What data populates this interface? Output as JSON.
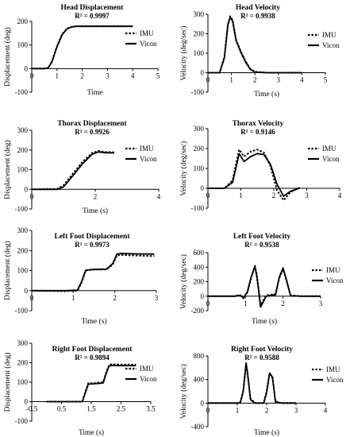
{
  "chart_data": [
    {
      "id": "head-disp",
      "type": "line",
      "title": "Head Displacement",
      "subtitle": "R² = 0.9997",
      "xlabel": "Time",
      "ylabel": "Displacement (deg)",
      "xlim": [
        0,
        5
      ],
      "ylim": [
        -100,
        200
      ],
      "xticks": [
        0,
        1,
        2,
        3,
        4,
        5
      ],
      "xtick_labels": [
        "0",
        "1",
        "2",
        "3",
        "4",
        "5"
      ],
      "yticks": [
        -100,
        0,
        100,
        200
      ],
      "ytick_labels": [
        "-100",
        "0",
        "100",
        "200"
      ],
      "legend": [
        "IMU",
        "Vicon"
      ],
      "legend_position": "right",
      "series": [
        {
          "name": "IMU",
          "style": "dotted",
          "x": [
            0,
            0.5,
            0.65,
            0.8,
            1.0,
            1.2,
            1.4,
            1.6,
            1.8,
            2.0,
            3.0,
            4.0
          ],
          "y": [
            0,
            0,
            3,
            30,
            95,
            145,
            170,
            178,
            180,
            180,
            180,
            180
          ]
        },
        {
          "name": "Vicon",
          "style": "solid",
          "x": [
            0,
            0.5,
            0.65,
            0.8,
            1.0,
            1.2,
            1.4,
            1.6,
            1.8,
            2.0,
            3.0,
            4.0
          ],
          "y": [
            0,
            0,
            2,
            28,
            92,
            143,
            169,
            177,
            179,
            179,
            179,
            179
          ]
        }
      ]
    },
    {
      "id": "head-vel",
      "type": "line",
      "title": "Head Velocity",
      "subtitle": "R² = 0.9938",
      "xlabel": "Time (s)",
      "ylabel": "Velocity (deg/sec)",
      "xlim": [
        0,
        5
      ],
      "ylim": [
        -100,
        300
      ],
      "xticks": [
        0,
        1,
        2,
        3,
        4,
        5
      ],
      "xtick_labels": [
        "0",
        "1",
        "2",
        "3",
        "4",
        "5"
      ],
      "yticks": [
        -100,
        0,
        100,
        200,
        300
      ],
      "ytick_labels": [
        "-100",
        "0",
        "100",
        "200",
        "300"
      ],
      "legend": [
        "IMU",
        "Vicon"
      ],
      "legend_position": "right",
      "series": [
        {
          "name": "IMU",
          "style": "dotted",
          "x": [
            0,
            0.5,
            0.7,
            0.85,
            0.95,
            1.05,
            1.2,
            1.4,
            1.6,
            1.8,
            2.0,
            2.5,
            4.0
          ],
          "y": [
            0,
            0,
            80,
            250,
            290,
            270,
            170,
            110,
            60,
            20,
            5,
            0,
            0
          ]
        },
        {
          "name": "Vicon",
          "style": "solid",
          "x": [
            0,
            0.5,
            0.7,
            0.85,
            0.95,
            1.05,
            1.2,
            1.4,
            1.6,
            1.8,
            2.0,
            2.5,
            4.0
          ],
          "y": [
            0,
            0,
            75,
            245,
            285,
            265,
            165,
            105,
            55,
            18,
            3,
            0,
            0
          ]
        }
      ]
    },
    {
      "id": "thorax-disp",
      "type": "line",
      "title": "Thorax Displacement",
      "subtitle": "R² = 0.9926",
      "xlabel": "Time (s)",
      "ylabel": "Displacement (deg)",
      "xlim": [
        0,
        4
      ],
      "ylim": [
        -100,
        300
      ],
      "xticks": [
        0,
        2,
        4
      ],
      "xtick_labels": [
        "0",
        "2",
        "4"
      ],
      "yticks": [
        -100,
        0,
        100,
        200,
        300
      ],
      "ytick_labels": [
        "-100",
        "0",
        "100",
        "200",
        "300"
      ],
      "legend": [
        "IMU",
        "Vicon"
      ],
      "legend_position": "right",
      "series": [
        {
          "name": "IMU",
          "style": "dotted",
          "x": [
            0,
            0.8,
            1.0,
            1.3,
            1.6,
            1.9,
            2.1,
            2.3,
            2.6
          ],
          "y": [
            0,
            2,
            20,
            80,
            140,
            185,
            195,
            190,
            188
          ]
        },
        {
          "name": "Vicon",
          "style": "solid",
          "x": [
            0,
            0.8,
            1.0,
            1.3,
            1.6,
            1.9,
            2.1,
            2.3,
            2.6
          ],
          "y": [
            0,
            0,
            12,
            70,
            130,
            178,
            190,
            186,
            185
          ]
        }
      ]
    },
    {
      "id": "thorax-vel",
      "type": "line",
      "title": "Thorax Velocity",
      "subtitle": "R² = 0.9146",
      "xlabel": "",
      "ylabel": "Velocity (deg/sec)",
      "xlim": [
        0,
        4
      ],
      "ylim": [
        -100,
        300
      ],
      "xticks": [
        0,
        1,
        2,
        3,
        4
      ],
      "xtick_labels": [
        "0",
        "1",
        "2",
        "3",
        "4"
      ],
      "yticks": [
        -100,
        0,
        100,
        200,
        300
      ],
      "ytick_labels": [
        "-100",
        "0",
        "100",
        "200",
        "300"
      ],
      "legend": [
        "IMU",
        "Vicon"
      ],
      "legend_position": "right",
      "series": [
        {
          "name": "IMU",
          "style": "dotted",
          "x": [
            0,
            0.5,
            0.75,
            0.95,
            1.1,
            1.3,
            1.5,
            1.7,
            1.9,
            2.1,
            2.3,
            2.5,
            2.8
          ],
          "y": [
            0,
            0,
            40,
            195,
            160,
            185,
            195,
            180,
            110,
            -10,
            -60,
            -20,
            5
          ]
        },
        {
          "name": "Vicon",
          "style": "solid",
          "x": [
            0,
            0.5,
            0.75,
            0.95,
            1.1,
            1.3,
            1.5,
            1.7,
            1.9,
            2.1,
            2.3,
            2.5,
            2.8
          ],
          "y": [
            0,
            0,
            30,
            175,
            135,
            160,
            175,
            170,
            120,
            20,
            -40,
            -15,
            2
          ]
        }
      ]
    },
    {
      "id": "lfoot-disp",
      "type": "line",
      "title": "Left Foot Displacement",
      "subtitle": "R² = 0.9973",
      "xlabel": "Time (s)",
      "ylabel": "Displacement (deg)",
      "xlim": [
        0,
        3
      ],
      "ylim": [
        -100,
        300
      ],
      "xticks": [
        0,
        1,
        2,
        3
      ],
      "xtick_labels": [
        "0",
        "1",
        "2",
        "3"
      ],
      "yticks": [
        -100,
        0,
        100,
        200,
        300
      ],
      "ytick_labels": [
        "-100",
        "0",
        "100",
        "200",
        "300"
      ],
      "legend": [],
      "series": [
        {
          "name": "IMU",
          "style": "dotted",
          "x": [
            0,
            0.8,
            1.1,
            1.2,
            1.3,
            1.5,
            1.8,
            1.95,
            2.05,
            2.15,
            2.5,
            2.95
          ],
          "y": [
            0,
            -3,
            0,
            40,
            100,
            105,
            105,
            130,
            175,
            178,
            175,
            172
          ]
        },
        {
          "name": "Vicon",
          "style": "solid",
          "x": [
            0,
            0.8,
            1.1,
            1.2,
            1.3,
            1.5,
            1.8,
            1.95,
            2.05,
            2.15,
            2.5,
            2.95
          ],
          "y": [
            0,
            0,
            2,
            45,
            102,
            106,
            107,
            135,
            182,
            185,
            183,
            182
          ]
        }
      ]
    },
    {
      "id": "lfoot-vel",
      "type": "line",
      "title": "Left Foot Velocity",
      "subtitle": "R² = 0.9538",
      "xlabel": "Time (s)",
      "ylabel": "Velocity (deg/sec)",
      "xlim": [
        0,
        3
      ],
      "ylim": [
        -200,
        600
      ],
      "xticks": [
        0,
        1,
        2,
        3
      ],
      "xtick_labels": [
        "0",
        "1",
        "2",
        "3"
      ],
      "yticks": [
        -200,
        0,
        200,
        400,
        600
      ],
      "ytick_labels": [
        "-200",
        "0",
        "200",
        "400",
        "600"
      ],
      "legend": [
        "IMU",
        "Vicon"
      ],
      "legend_position": "right",
      "series": [
        {
          "name": "IMU",
          "style": "dotted",
          "x": [
            0,
            0.7,
            0.85,
            0.95,
            1.05,
            1.15,
            1.25,
            1.3,
            1.35,
            1.4,
            1.55,
            1.8,
            1.9,
            2.0,
            2.1,
            2.2,
            2.5,
            3.0
          ],
          "y": [
            0,
            0,
            20,
            -30,
            50,
            250,
            420,
            300,
            100,
            -130,
            10,
            30,
            250,
            370,
            200,
            10,
            0,
            0
          ]
        },
        {
          "name": "Vicon",
          "style": "solid",
          "x": [
            0,
            0.7,
            0.85,
            0.95,
            1.05,
            1.15,
            1.25,
            1.3,
            1.35,
            1.4,
            1.55,
            1.8,
            1.9,
            2.0,
            2.1,
            2.2,
            2.5,
            3.0
          ],
          "y": [
            0,
            0,
            10,
            -20,
            60,
            260,
            410,
            280,
            80,
            -150,
            0,
            20,
            260,
            390,
            210,
            5,
            0,
            0
          ]
        }
      ]
    },
    {
      "id": "rfoot-disp",
      "type": "line",
      "title": "Right Foot Displacement",
      "subtitle": "R² = 0.9894",
      "xlabel": "Time (s)",
      "ylabel": "Displacement (deg)",
      "xlim": [
        -0.5,
        3.5
      ],
      "ylim": [
        -100,
        300
      ],
      "xticks": [
        -0.5,
        0.5,
        1.5,
        2.5,
        3.5
      ],
      "xtick_labels": [
        "-0.5",
        "0.5",
        "1.5",
        "2.5",
        "3.5"
      ],
      "yticks": [
        -100,
        0,
        100,
        200,
        300
      ],
      "ytick_labels": [
        "-100",
        "0",
        "100",
        "200",
        "300"
      ],
      "legend": [
        "IMU",
        "Vicon"
      ],
      "legend_position": "right",
      "series": [
        {
          "name": "IMU",
          "style": "dotted",
          "x": [
            0,
            1.2,
            1.3,
            1.4,
            1.6,
            1.9,
            2.0,
            2.1,
            2.2,
            2.5,
            3.0
          ],
          "y": [
            0,
            0,
            50,
            95,
            95,
            100,
            150,
            190,
            192,
            190,
            190
          ]
        },
        {
          "name": "Vicon",
          "style": "solid",
          "x": [
            0,
            1.2,
            1.3,
            1.4,
            1.6,
            1.9,
            2.0,
            2.1,
            2.2,
            2.5,
            3.0
          ],
          "y": [
            0,
            0,
            45,
            90,
            92,
            96,
            145,
            183,
            186,
            185,
            185
          ]
        }
      ]
    },
    {
      "id": "rfoot-vel",
      "type": "line",
      "title": "Right Foot Velocity",
      "subtitle": "R² = 0.9588",
      "xlabel": "Time (s)",
      "ylabel": "Velocity (deg/sec)",
      "xlim": [
        0,
        4
      ],
      "ylim": [
        -400,
        800
      ],
      "xticks": [
        0,
        1,
        2,
        3,
        4
      ],
      "xtick_labels": [
        "0",
        "1",
        "2",
        "3",
        "4"
      ],
      "yticks": [
        -400,
        0,
        400,
        800
      ],
      "ytick_labels": [
        "-400",
        "0",
        "400",
        "800"
      ],
      "legend": [
        "IMU",
        "Vicon"
      ],
      "legend_position": "right",
      "series": [
        {
          "name": "IMU",
          "style": "dotted",
          "x": [
            0,
            1.0,
            1.1,
            1.2,
            1.3,
            1.35,
            1.45,
            1.6,
            1.9,
            2.0,
            2.1,
            2.2,
            2.3,
            2.5,
            3.0
          ],
          "y": [
            0,
            0,
            10,
            200,
            650,
            500,
            80,
            0,
            0,
            200,
            500,
            420,
            30,
            0,
            0
          ]
        },
        {
          "name": "Vicon",
          "style": "solid",
          "x": [
            0,
            1.0,
            1.1,
            1.2,
            1.3,
            1.35,
            1.45,
            1.6,
            1.9,
            2.0,
            2.1,
            2.2,
            2.3,
            2.5,
            3.0
          ],
          "y": [
            0,
            0,
            5,
            190,
            680,
            520,
            60,
            0,
            0,
            180,
            510,
            440,
            20,
            0,
            0
          ]
        }
      ]
    }
  ]
}
